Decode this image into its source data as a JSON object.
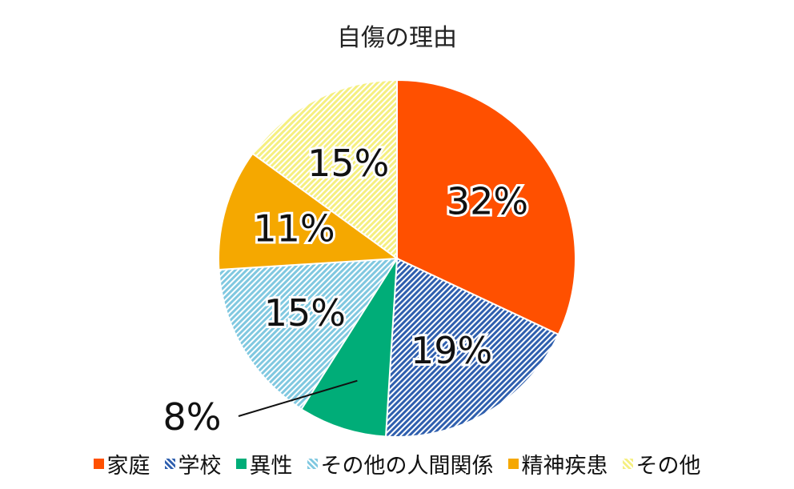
{
  "chart_data": {
    "type": "pie",
    "title": "自傷の理由",
    "start": "12 o'clock, clockwise",
    "categories": [
      "家庭",
      "学校",
      "異性",
      "その他の人間関係",
      "精神疾患",
      "その他"
    ],
    "values": [
      32,
      19,
      8,
      15,
      11,
      15
    ],
    "labels": [
      "32%",
      "19%",
      "8%",
      "15%",
      "11%",
      "15%"
    ],
    "colors": [
      "#ff5000",
      "#2f5fae",
      "#00ad78",
      "#80c8e0",
      "#f5a800",
      "#f5ef80"
    ],
    "patterns": [
      "solid",
      "stripes",
      "solid",
      "stripes",
      "solid",
      "stripes"
    ],
    "legend_position": "bottom"
  }
}
